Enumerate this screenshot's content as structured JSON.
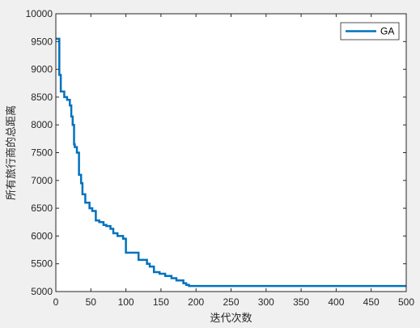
{
  "chart_data": {
    "type": "line",
    "xlabel": "迭代次数",
    "ylabel": "所有旅行商的总距离",
    "xlim": [
      0,
      500
    ],
    "ylim": [
      5000,
      10000
    ],
    "xticks": [
      0,
      50,
      100,
      150,
      200,
      250,
      300,
      350,
      400,
      450,
      500
    ],
    "yticks": [
      5000,
      5500,
      6000,
      6500,
      7000,
      7500,
      8000,
      8500,
      9000,
      9500,
      10000
    ],
    "grid": false,
    "legend_position": "top-right",
    "series": [
      {
        "name": "GA",
        "color": "#0072bd",
        "x": [
          0,
          5,
          5,
          7,
          7,
          12,
          12,
          16,
          16,
          20,
          20,
          22,
          22,
          24,
          24,
          26,
          26,
          27,
          27,
          30,
          30,
          33,
          33,
          36,
          36,
          38,
          38,
          42,
          42,
          48,
          48,
          52,
          52,
          57,
          57,
          62,
          62,
          68,
          68,
          72,
          72,
          78,
          78,
          82,
          82,
          88,
          88,
          96,
          96,
          100,
          100,
          118,
          118,
          130,
          130,
          134,
          134,
          140,
          140,
          148,
          148,
          156,
          156,
          165,
          165,
          172,
          172,
          182,
          182,
          186,
          186,
          190,
          190,
          500
        ],
        "y": [
          9550,
          9550,
          8900,
          8900,
          8600,
          8600,
          8500,
          8500,
          8450,
          8450,
          8350,
          8350,
          8150,
          8150,
          8000,
          8000,
          7650,
          7650,
          7600,
          7600,
          7500,
          7500,
          7100,
          7100,
          6950,
          6950,
          6750,
          6750,
          6600,
          6600,
          6500,
          6500,
          6450,
          6450,
          6280,
          6280,
          6250,
          6250,
          6200,
          6200,
          6180,
          6180,
          6130,
          6130,
          6050,
          6050,
          6000,
          6000,
          5950,
          5950,
          5700,
          5700,
          5570,
          5570,
          5500,
          5500,
          5450,
          5450,
          5350,
          5350,
          5320,
          5320,
          5280,
          5280,
          5240,
          5240,
          5200,
          5200,
          5150,
          5150,
          5120,
          5120,
          5100,
          5100
        ]
      }
    ]
  }
}
